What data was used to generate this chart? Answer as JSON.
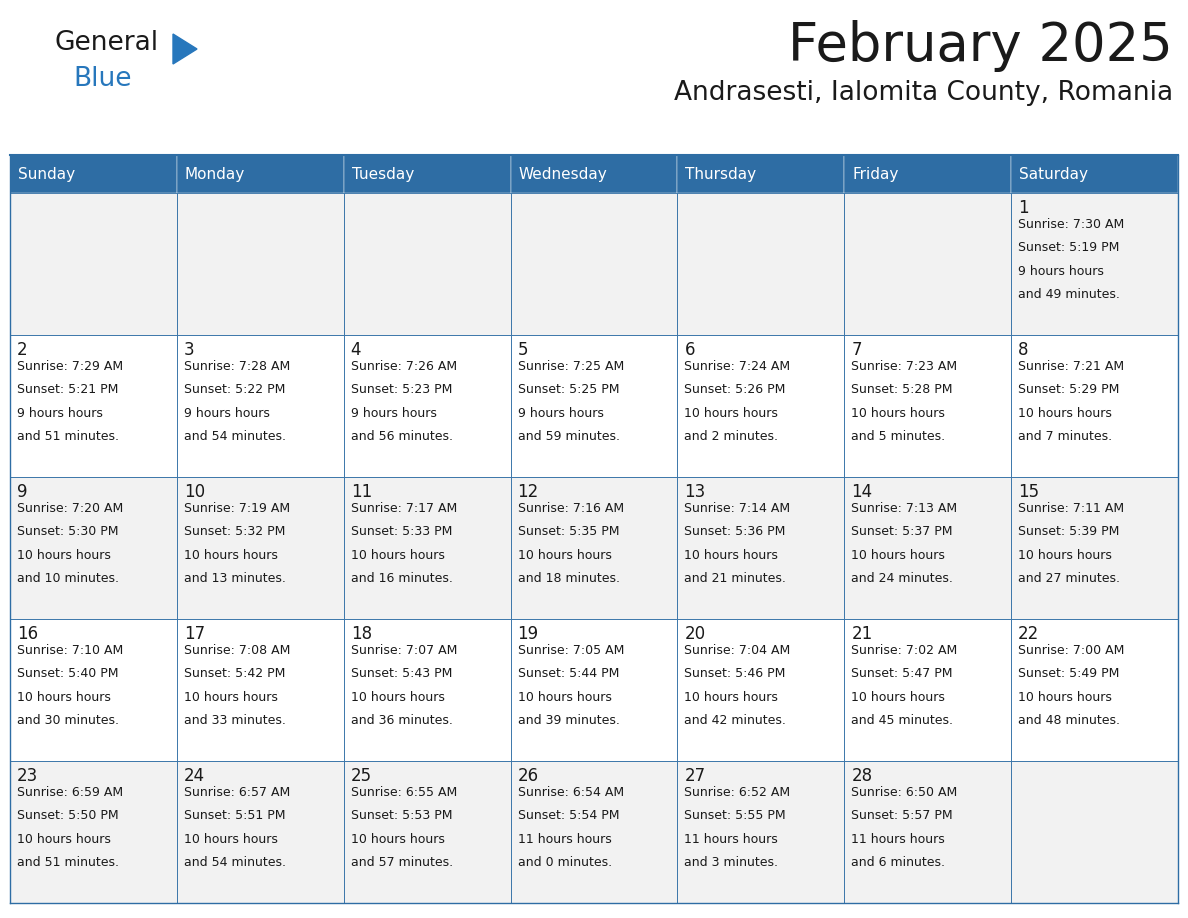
{
  "title": "February 2025",
  "subtitle": "Andrasesti, Ialomita County, Romania",
  "header_bg": "#2E6DA4",
  "header_text": "#FFFFFF",
  "cell_bg_odd": "#F2F2F2",
  "cell_bg_even": "#FFFFFF",
  "border_color": "#2E6DA4",
  "text_color": "#1a1a1a",
  "day_names": [
    "Sunday",
    "Monday",
    "Tuesday",
    "Wednesday",
    "Thursday",
    "Friday",
    "Saturday"
  ],
  "weeks": [
    [
      null,
      null,
      null,
      null,
      null,
      null,
      1
    ],
    [
      2,
      3,
      4,
      5,
      6,
      7,
      8
    ],
    [
      9,
      10,
      11,
      12,
      13,
      14,
      15
    ],
    [
      16,
      17,
      18,
      19,
      20,
      21,
      22
    ],
    [
      23,
      24,
      25,
      26,
      27,
      28,
      null
    ]
  ],
  "day_data": {
    "1": {
      "sunrise": "7:30 AM",
      "sunset": "5:19 PM",
      "daylight": "9 hours and 49 minutes."
    },
    "2": {
      "sunrise": "7:29 AM",
      "sunset": "5:21 PM",
      "daylight": "9 hours and 51 minutes."
    },
    "3": {
      "sunrise": "7:28 AM",
      "sunset": "5:22 PM",
      "daylight": "9 hours and 54 minutes."
    },
    "4": {
      "sunrise": "7:26 AM",
      "sunset": "5:23 PM",
      "daylight": "9 hours and 56 minutes."
    },
    "5": {
      "sunrise": "7:25 AM",
      "sunset": "5:25 PM",
      "daylight": "9 hours and 59 minutes."
    },
    "6": {
      "sunrise": "7:24 AM",
      "sunset": "5:26 PM",
      "daylight": "10 hours and 2 minutes."
    },
    "7": {
      "sunrise": "7:23 AM",
      "sunset": "5:28 PM",
      "daylight": "10 hours and 5 minutes."
    },
    "8": {
      "sunrise": "7:21 AM",
      "sunset": "5:29 PM",
      "daylight": "10 hours and 7 minutes."
    },
    "9": {
      "sunrise": "7:20 AM",
      "sunset": "5:30 PM",
      "daylight": "10 hours and 10 minutes."
    },
    "10": {
      "sunrise": "7:19 AM",
      "sunset": "5:32 PM",
      "daylight": "10 hours and 13 minutes."
    },
    "11": {
      "sunrise": "7:17 AM",
      "sunset": "5:33 PM",
      "daylight": "10 hours and 16 minutes."
    },
    "12": {
      "sunrise": "7:16 AM",
      "sunset": "5:35 PM",
      "daylight": "10 hours and 18 minutes."
    },
    "13": {
      "sunrise": "7:14 AM",
      "sunset": "5:36 PM",
      "daylight": "10 hours and 21 minutes."
    },
    "14": {
      "sunrise": "7:13 AM",
      "sunset": "5:37 PM",
      "daylight": "10 hours and 24 minutes."
    },
    "15": {
      "sunrise": "7:11 AM",
      "sunset": "5:39 PM",
      "daylight": "10 hours and 27 minutes."
    },
    "16": {
      "sunrise": "7:10 AM",
      "sunset": "5:40 PM",
      "daylight": "10 hours and 30 minutes."
    },
    "17": {
      "sunrise": "7:08 AM",
      "sunset": "5:42 PM",
      "daylight": "10 hours and 33 minutes."
    },
    "18": {
      "sunrise": "7:07 AM",
      "sunset": "5:43 PM",
      "daylight": "10 hours and 36 minutes."
    },
    "19": {
      "sunrise": "7:05 AM",
      "sunset": "5:44 PM",
      "daylight": "10 hours and 39 minutes."
    },
    "20": {
      "sunrise": "7:04 AM",
      "sunset": "5:46 PM",
      "daylight": "10 hours and 42 minutes."
    },
    "21": {
      "sunrise": "7:02 AM",
      "sunset": "5:47 PM",
      "daylight": "10 hours and 45 minutes."
    },
    "22": {
      "sunrise": "7:00 AM",
      "sunset": "5:49 PM",
      "daylight": "10 hours and 48 minutes."
    },
    "23": {
      "sunrise": "6:59 AM",
      "sunset": "5:50 PM",
      "daylight": "10 hours and 51 minutes."
    },
    "24": {
      "sunrise": "6:57 AM",
      "sunset": "5:51 PM",
      "daylight": "10 hours and 54 minutes."
    },
    "25": {
      "sunrise": "6:55 AM",
      "sunset": "5:53 PM",
      "daylight": "10 hours and 57 minutes."
    },
    "26": {
      "sunrise": "6:54 AM",
      "sunset": "5:54 PM",
      "daylight": "11 hours and 0 minutes."
    },
    "27": {
      "sunrise": "6:52 AM",
      "sunset": "5:55 PM",
      "daylight": "11 hours and 3 minutes."
    },
    "28": {
      "sunrise": "6:50 AM",
      "sunset": "5:57 PM",
      "daylight": "11 hours and 6 minutes."
    }
  },
  "logo_general_color": "#1a1a1a",
  "logo_blue_color": "#2777BC",
  "logo_triangle_color": "#2777BC",
  "fig_width": 11.88,
  "fig_height": 9.18,
  "dpi": 100
}
